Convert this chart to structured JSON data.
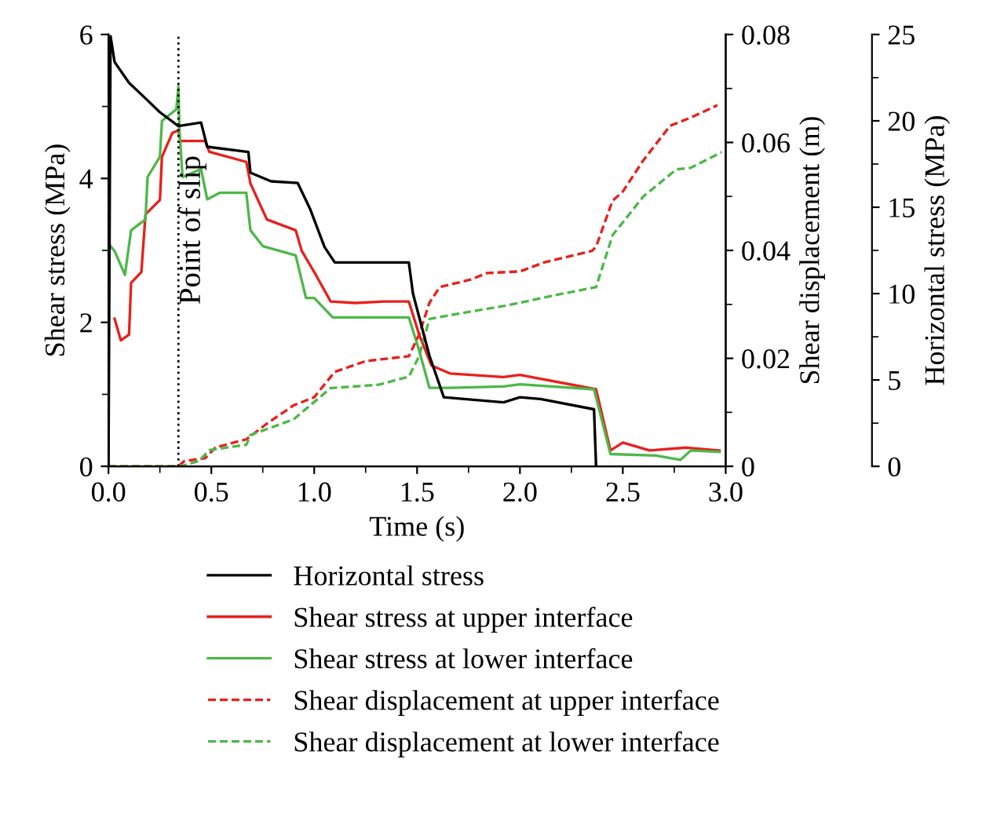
{
  "chart_data": {
    "type": "line",
    "xlabel": "Time (s)",
    "ylabel": "Shear stress (MPa)",
    "y2label": "Shear displacement (m)",
    "y3label": "Horizontal stress (MPa)",
    "xlim": [
      0,
      3.0
    ],
    "xticks": [
      {
        "value": 0,
        "label": "0.0"
      },
      0.5,
      {
        "value": 1,
        "label": "1.0"
      },
      1.5,
      {
        "value": 2,
        "label": "2.0"
      },
      2.5,
      {
        "value": 3,
        "label": "3.0"
      }
    ],
    "ylim": [
      0,
      6
    ],
    "yticks": [
      0,
      2,
      4,
      6
    ],
    "y2lim": [
      0,
      0.08
    ],
    "y2ticks": [
      0,
      0.02,
      0.04,
      0.06,
      0.08
    ],
    "y3lim": [
      0,
      25
    ],
    "y3ticks": [
      0,
      5,
      10,
      15,
      20,
      25
    ],
    "legend": "bottom",
    "grid": false,
    "marker": "none",
    "ref_lines": [
      {
        "axis": "x",
        "value": 0.34,
        "label": "Point of slip",
        "color": "#000000",
        "line_style": "dotted"
      }
    ],
    "series": [
      {
        "name": "Horizontal stress",
        "color": "#000000",
        "axis": "y3",
        "line_style": "solid",
        "x": [
          0,
          0.01,
          0.03,
          0.1,
          0.18,
          0.25,
          0.34,
          0.45,
          0.48,
          0.68,
          0.69,
          0.79,
          0.92,
          0.98,
          1.05,
          1.1,
          1.46,
          1.48,
          1.56,
          1.63,
          1.92,
          2.0,
          2.1,
          2.36,
          2.37
        ],
        "values": [
          0,
          24.9,
          23.4,
          22.2,
          21.3,
          20.5,
          19.7,
          19.9,
          18.5,
          18.2,
          17.0,
          16.5,
          16.4,
          14.9,
          12.7,
          11.8,
          11.8,
          10.0,
          6.4,
          4.0,
          3.7,
          4.0,
          3.9,
          3.3,
          0
        ]
      },
      {
        "name": "Shear stress at upper interface",
        "color": "#e8201c",
        "axis": "y",
        "line_style": "solid",
        "x": [
          0.03,
          0.06,
          0.1,
          0.11,
          0.16,
          0.18,
          0.25,
          0.26,
          0.31,
          0.34,
          0.35,
          0.47,
          0.49,
          0.67,
          0.69,
          0.77,
          0.91,
          0.94,
          1.0,
          1.08,
          1.2,
          1.34,
          1.46,
          1.51,
          1.57,
          1.66,
          1.92,
          2.0,
          2.37,
          2.44,
          2.5,
          2.63,
          2.81,
          2.97
        ],
        "values": [
          2.05,
          1.75,
          1.83,
          2.55,
          2.7,
          3.5,
          3.7,
          4.3,
          4.63,
          4.67,
          4.52,
          4.52,
          4.37,
          4.23,
          3.93,
          3.43,
          3.28,
          2.99,
          2.7,
          2.29,
          2.27,
          2.29,
          2.29,
          1.83,
          1.4,
          1.29,
          1.24,
          1.27,
          1.07,
          0.22,
          0.33,
          0.22,
          0.26,
          0.22
        ]
      },
      {
        "name": "Shear stress at lower interface",
        "color": "#4db848",
        "axis": "y",
        "line_style": "solid",
        "x": [
          0.01,
          0.03,
          0.08,
          0.11,
          0.18,
          0.19,
          0.25,
          0.26,
          0.33,
          0.34,
          0.345,
          0.36,
          0.45,
          0.48,
          0.54,
          0.67,
          0.69,
          0.75,
          0.91,
          0.96,
          1.0,
          1.09,
          1.46,
          1.51,
          1.56,
          1.66,
          1.92,
          2.0,
          2.36,
          2.44,
          2.66,
          2.78,
          2.83,
          2.97
        ],
        "values": [
          3.06,
          2.99,
          2.66,
          3.28,
          3.43,
          4.02,
          4.3,
          4.8,
          4.96,
          5.28,
          4.67,
          4.02,
          4.13,
          3.71,
          3.8,
          3.8,
          3.28,
          3.06,
          2.93,
          2.34,
          2.34,
          2.07,
          2.07,
          1.61,
          1.09,
          1.09,
          1.11,
          1.14,
          1.07,
          0.17,
          0.15,
          0.09,
          0.22,
          0.2
        ]
      },
      {
        "name": "Shear displacement at upper interface",
        "color": "#e8201c",
        "axis": "y2",
        "line_style": "dashed",
        "x": [
          0,
          0.34,
          0.37,
          0.47,
          0.52,
          0.67,
          0.77,
          0.9,
          1.0,
          1.1,
          1.25,
          1.46,
          1.51,
          1.56,
          1.61,
          1.76,
          1.84,
          2.0,
          2.12,
          2.35,
          2.37,
          2.45,
          2.5,
          2.6,
          2.73,
          2.83,
          2.96
        ],
        "values": [
          0,
          0,
          0.001,
          0.0015,
          0.0035,
          0.005,
          0.0079,
          0.0113,
          0.0128,
          0.0175,
          0.0195,
          0.0204,
          0.0244,
          0.0303,
          0.0332,
          0.0346,
          0.0358,
          0.0361,
          0.0378,
          0.0399,
          0.0407,
          0.0492,
          0.0509,
          0.0567,
          0.0631,
          0.0646,
          0.0669
        ]
      },
      {
        "name": "Shear displacement at lower interface",
        "color": "#4db848",
        "axis": "y2",
        "line_style": "dashed",
        "x": [
          0,
          0.35,
          0.44,
          0.49,
          0.67,
          0.69,
          0.9,
          1.08,
          1.31,
          1.46,
          1.51,
          1.56,
          1.69,
          1.92,
          2.0,
          2.17,
          2.37,
          2.45,
          2.6,
          2.76,
          2.83,
          2.98
        ],
        "values": [
          0,
          0,
          0.001,
          0.003,
          0.004,
          0.0058,
          0.0087,
          0.0145,
          0.0151,
          0.0166,
          0.0204,
          0.0273,
          0.0282,
          0.0297,
          0.0303,
          0.0317,
          0.0332,
          0.0428,
          0.05,
          0.055,
          0.0553,
          0.0582
        ]
      }
    ]
  }
}
